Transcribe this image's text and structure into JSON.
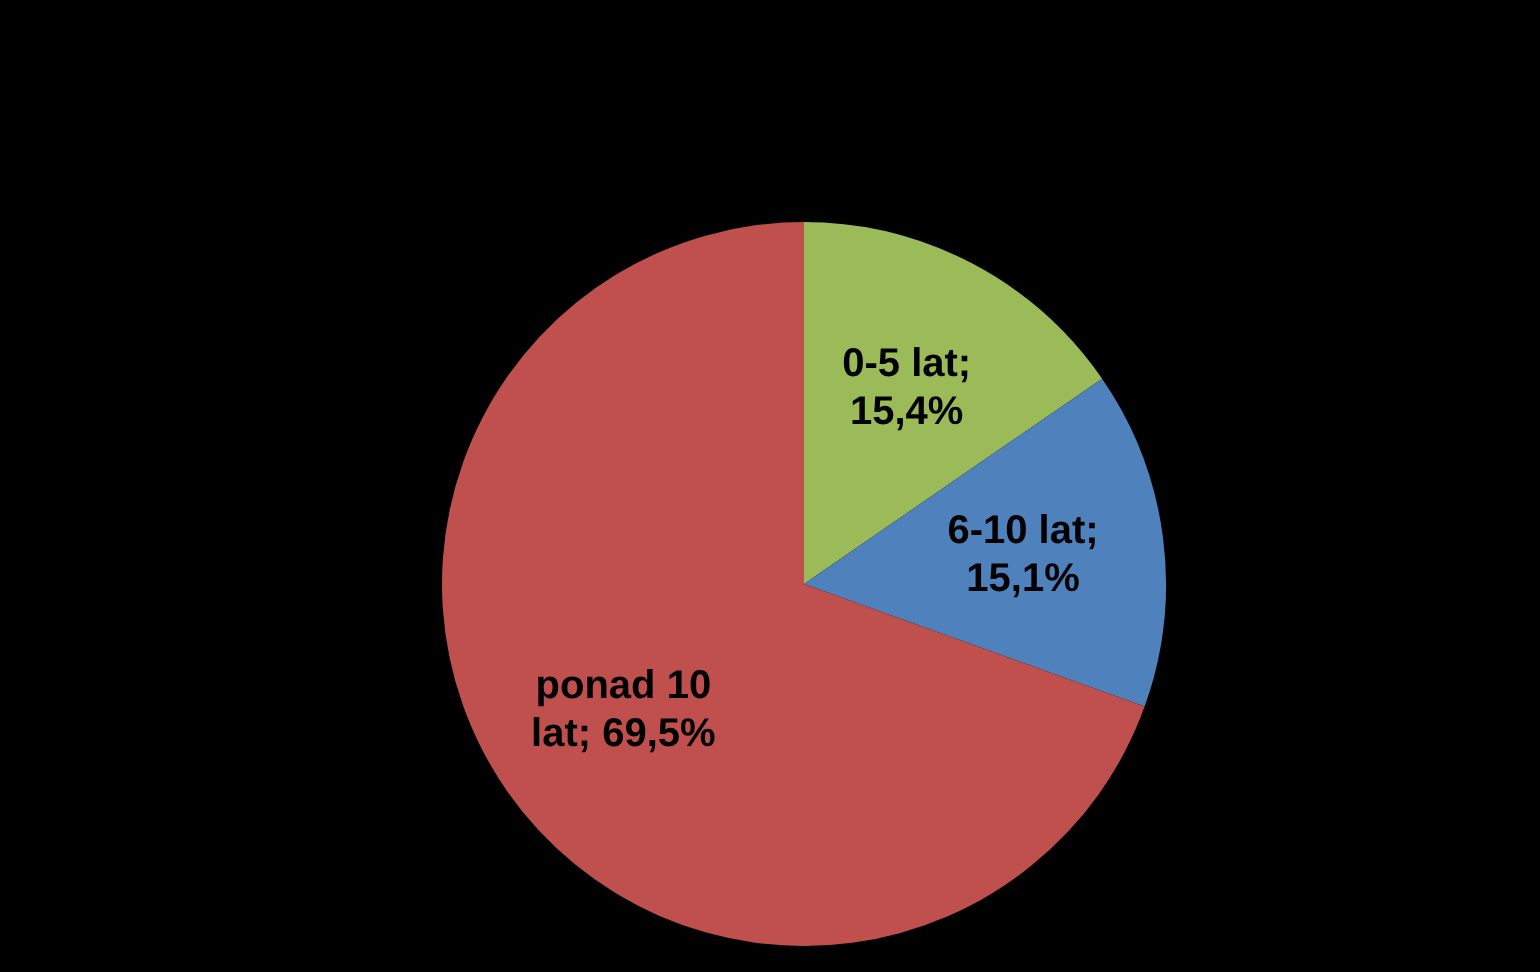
{
  "chart_data": {
    "type": "pie",
    "categories": [
      "0-5 lat",
      "6-10 lat",
      "ponad 10 lat"
    ],
    "values": [
      15.4,
      15.1,
      69.5
    ],
    "colors": [
      "#9bbb59",
      "#4f81bd",
      "#c0504d"
    ],
    "value_labels": [
      "; 15,4%",
      "; 15,1%",
      "; 69,5%"
    ],
    "legend": false
  }
}
